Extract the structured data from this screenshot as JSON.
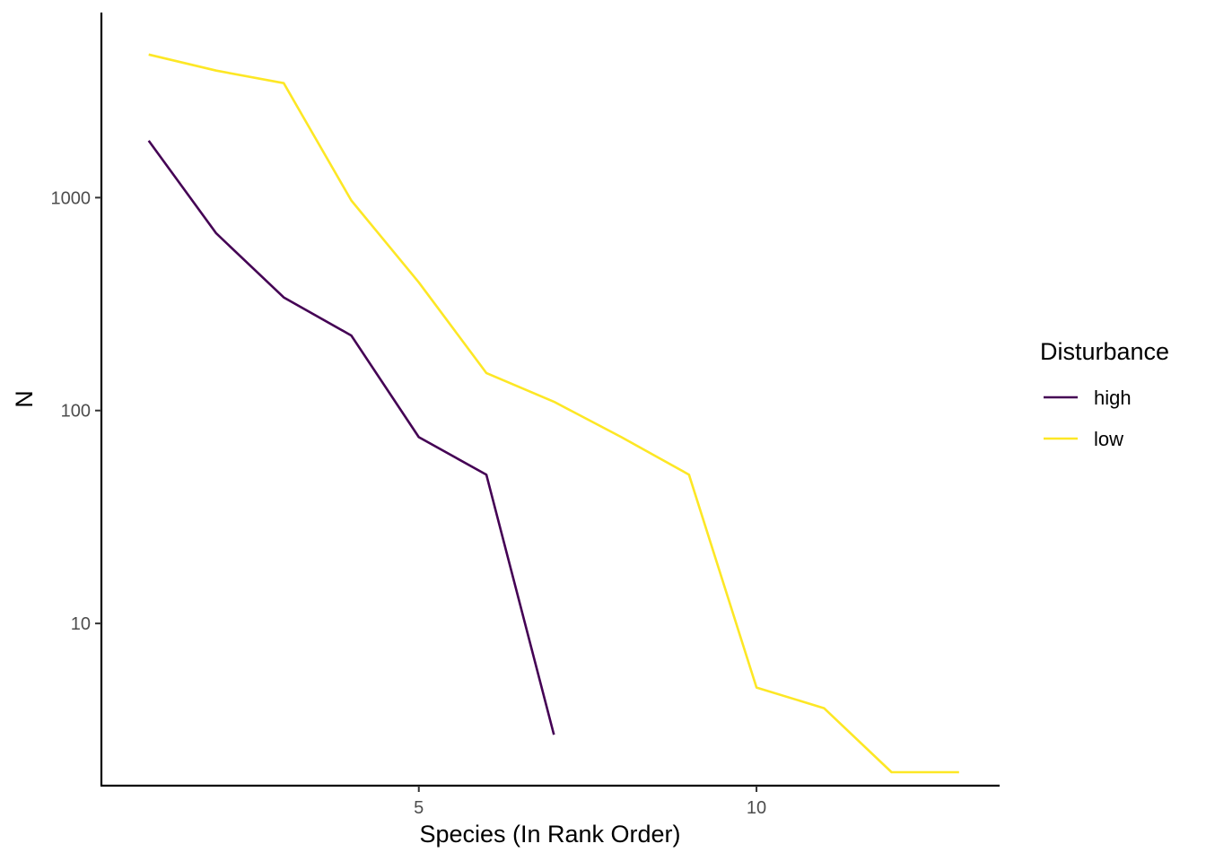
{
  "chart_data": {
    "type": "line",
    "xlabel": "Species (In Rank Order)",
    "ylabel": "N",
    "y_scale": "log10",
    "xlim": [
      0.3,
      13.6
    ],
    "ylim": [
      1.73,
      7400
    ],
    "x_ticks": [
      5,
      10
    ],
    "y_ticks": [
      10,
      100,
      1000
    ],
    "y_tick_labels": [
      "10",
      "100",
      "1000"
    ],
    "grid": false,
    "legend": {
      "title": "Disturbance",
      "position": "right"
    },
    "series": [
      {
        "name": "high",
        "color": "#440154",
        "x": [
          1,
          2,
          3,
          4,
          5,
          6,
          7
        ],
        "y": [
          1850,
          680,
          340,
          225,
          75,
          50,
          3
        ]
      },
      {
        "name": "low",
        "color": "#FDE725",
        "x": [
          1,
          2,
          3,
          4,
          5,
          6,
          7,
          8,
          9,
          10,
          11,
          12,
          13
        ],
        "y": [
          4700,
          3950,
          3450,
          970,
          400,
          150,
          110,
          75,
          50,
          5,
          4,
          2,
          2
        ]
      }
    ]
  }
}
